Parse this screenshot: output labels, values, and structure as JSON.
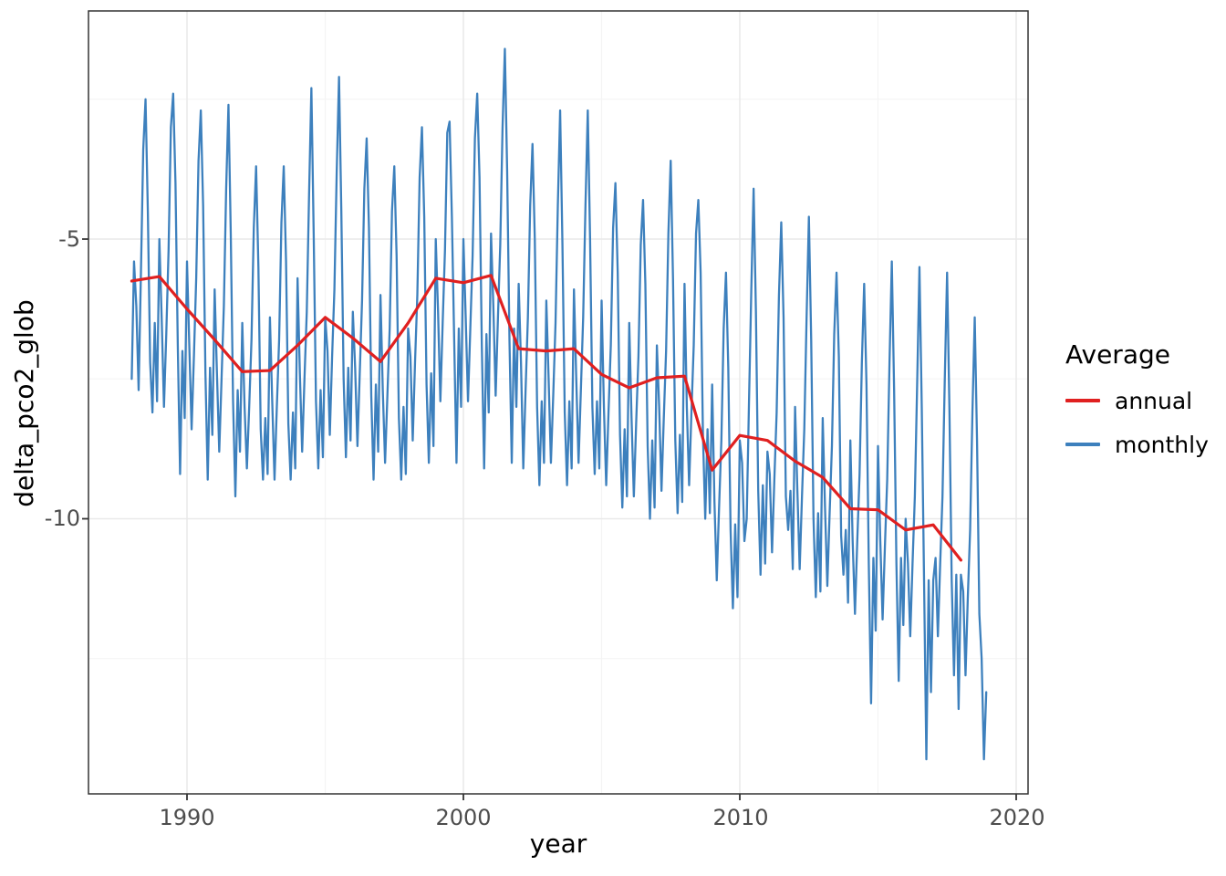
{
  "legend": {
    "title": "Average",
    "items": [
      {
        "label": "annual"
      },
      {
        "label": "monthly"
      }
    ]
  },
  "colors": {
    "annual": "#e02020",
    "monthly": "#3d80bd",
    "grid_major": "#e9e9e9",
    "grid_minor": "#f4f4f4",
    "panel_border": "#333333",
    "tick_mark": "#333333"
  },
  "chart_data": {
    "type": "line",
    "xlabel": "year",
    "ylabel": "delta_pco2_glob",
    "legend_title": "Average",
    "legend_position": "right",
    "grid": true,
    "xlim": [
      1986.4,
      2020.4
    ],
    "ylim": [
      -14.9,
      -0.9
    ],
    "x_ticks": [
      1990,
      2000,
      2010,
      2020
    ],
    "x_tick_labels": [
      "1990",
      "2000",
      "2010",
      "2020"
    ],
    "x_minor_ticks": [
      1995,
      2005,
      2015
    ],
    "y_ticks": [
      -5,
      -10
    ],
    "y_tick_labels": [
      "-5",
      "-10"
    ],
    "y_minor_ticks": [
      -2.5,
      -7.5,
      -12.5
    ],
    "series": [
      {
        "name": "annual",
        "style": "line",
        "x": [
          1988,
          1989,
          1990,
          1991,
          1992,
          1993,
          1994,
          1995,
          1996,
          1997,
          1998,
          1999,
          2000,
          2001,
          2002,
          2003,
          2004,
          2005,
          2006,
          2007,
          2008,
          2009,
          2010,
          2011,
          2012,
          2013,
          2014,
          2015,
          2016,
          2017,
          2018
        ],
        "values": [
          -5.75,
          -5.67,
          -6.25,
          -6.8,
          -7.37,
          -7.35,
          -6.9,
          -6.4,
          -6.77,
          -7.19,
          -6.5,
          -5.7,
          -5.78,
          -5.65,
          -6.96,
          -7.0,
          -6.96,
          -7.42,
          -7.66,
          -7.48,
          -7.45,
          -9.13,
          -8.51,
          -8.6,
          -8.97,
          -9.26,
          -9.82,
          -9.84,
          -10.2,
          -10.11,
          -10.74
        ]
      },
      {
        "name": "monthly",
        "style": "line",
        "months": [
          "Jan",
          "Feb",
          "Mar",
          "Apr",
          "May",
          "Jun",
          "Jul",
          "Aug",
          "Sep",
          "Oct",
          "Nov",
          "Dec"
        ],
        "values_by_year": {
          "1988": [
            -7.5,
            -5.4,
            -6.2,
            -7.7,
            -5.6,
            -3.4,
            -2.5,
            -4.5,
            -7.2,
            -8.1,
            -6.5,
            -7.9
          ],
          "1989": [
            -5.0,
            -6.4,
            -8.0,
            -6.7,
            -5.2,
            -3.0,
            -2.4,
            -4.0,
            -6.9,
            -9.2,
            -7.0,
            -8.2
          ],
          "1990": [
            -5.4,
            -6.9,
            -8.4,
            -7.1,
            -5.7,
            -3.6,
            -2.7,
            -4.4,
            -7.4,
            -9.3,
            -7.3,
            -8.5
          ],
          "1991": [
            -5.9,
            -7.4,
            -8.8,
            -7.5,
            -6.2,
            -4.1,
            -2.6,
            -4.9,
            -7.9,
            -9.6,
            -7.7,
            -8.8
          ],
          "1992": [
            -6.5,
            -8.0,
            -9.1,
            -8.0,
            -6.8,
            -4.8,
            -3.7,
            -5.5,
            -8.4,
            -9.3,
            -8.2,
            -9.2
          ],
          "1993": [
            -6.4,
            -7.9,
            -9.3,
            -8.0,
            -6.8,
            -4.7,
            -3.7,
            -5.4,
            -8.3,
            -9.3,
            -8.1,
            -9.1
          ],
          "1994": [
            -5.7,
            -7.4,
            -8.8,
            -7.5,
            -6.3,
            -4.2,
            -2.3,
            -4.9,
            -7.9,
            -9.1,
            -7.7,
            -8.9
          ],
          "1995": [
            -6.4,
            -7.0,
            -8.5,
            -7.1,
            -5.9,
            -3.8,
            -2.1,
            -4.5,
            -7.5,
            -8.9,
            -7.3,
            -8.6
          ],
          "1996": [
            -6.3,
            -7.3,
            -8.7,
            -7.4,
            -6.1,
            -4.1,
            -3.2,
            -4.8,
            -7.8,
            -9.3,
            -7.6,
            -8.8
          ],
          "1997": [
            -6.0,
            -7.7,
            -9.0,
            -7.8,
            -6.6,
            -4.5,
            -3.7,
            -5.3,
            -8.2,
            -9.3,
            -8.0,
            -9.2
          ],
          "1998": [
            -6.6,
            -7.1,
            -8.6,
            -7.2,
            -6.0,
            -3.9,
            -3.0,
            -4.6,
            -7.6,
            -9.0,
            -7.4,
            -8.7
          ],
          "1999": [
            -5.0,
            -6.3,
            -7.9,
            -6.5,
            -5.2,
            -3.1,
            -2.9,
            -4.6,
            -6.8,
            -9.0,
            -6.6,
            -8.0
          ],
          "2000": [
            -5.0,
            -6.4,
            -7.9,
            -6.6,
            -5.3,
            -3.2,
            -2.4,
            -3.9,
            -6.9,
            -9.1,
            -6.7,
            -8.1
          ],
          "2001": [
            -4.9,
            -6.2,
            -7.8,
            -6.4,
            -5.1,
            -3.0,
            -1.6,
            -3.8,
            -6.8,
            -9.0,
            -6.6,
            -8.0
          ],
          "2002": [
            -5.8,
            -7.2,
            -9.1,
            -7.7,
            -6.4,
            -4.4,
            -3.3,
            -5.0,
            -8.0,
            -9.4,
            -7.9,
            -9.0
          ],
          "2003": [
            -6.1,
            -7.5,
            -9.0,
            -7.8,
            -6.5,
            -4.4,
            -2.7,
            -5.1,
            -8.1,
            -9.4,
            -7.9,
            -9.1
          ],
          "2004": [
            -5.9,
            -7.5,
            -9.0,
            -7.7,
            -6.4,
            -4.4,
            -2.7,
            -5.0,
            -8.0,
            -9.2,
            -7.9,
            -9.1
          ],
          "2005": [
            -6.1,
            -8.0,
            -9.4,
            -8.1,
            -6.9,
            -4.8,
            -4.0,
            -5.6,
            -8.5,
            -9.8,
            -8.4,
            -9.6
          ],
          "2006": [
            -6.5,
            -8.2,
            -9.6,
            -8.3,
            -7.1,
            -5.1,
            -4.3,
            -5.8,
            -8.7,
            -10.0,
            -8.6,
            -9.8
          ],
          "2007": [
            -6.9,
            -8.0,
            -9.5,
            -8.2,
            -7.0,
            -4.9,
            -3.6,
            -5.7,
            -8.6,
            -9.9,
            -8.5,
            -9.7
          ],
          "2008": [
            -5.8,
            -8.0,
            -9.4,
            -8.1,
            -6.9,
            -4.9,
            -4.3,
            -5.6,
            -8.5,
            -10.0,
            -8.4,
            -9.9
          ],
          "2009": [
            -7.6,
            -9.7,
            -11.1,
            -9.8,
            -8.6,
            -6.6,
            -5.6,
            -7.3,
            -10.2,
            -11.6,
            -10.1,
            -11.4
          ],
          "2010": [
            -8.6,
            -9.0,
            -10.4,
            -10.0,
            -7.9,
            -5.9,
            -4.1,
            -6.3,
            -9.5,
            -11.0,
            -9.4,
            -10.8
          ],
          "2011": [
            -8.8,
            -9.2,
            -10.6,
            -9.3,
            -8.1,
            -6.0,
            -4.7,
            -6.4,
            -9.6,
            -10.2,
            -9.5,
            -10.9
          ],
          "2012": [
            -8.0,
            -9.5,
            -10.9,
            -9.6,
            -8.4,
            -6.4,
            -4.6,
            -6.8,
            -10.0,
            -11.4,
            -9.9,
            -11.3
          ],
          "2013": [
            -8.2,
            -9.8,
            -11.2,
            -9.9,
            -8.7,
            -6.7,
            -5.6,
            -7.1,
            -10.3,
            -11.0,
            -10.2,
            -11.5
          ],
          "2014": [
            -8.6,
            -10.4,
            -11.7,
            -10.4,
            -9.2,
            -7.2,
            -5.8,
            -7.6,
            -10.8,
            -13.3,
            -10.7,
            -12.0
          ],
          "2015": [
            -8.7,
            -10.4,
            -11.8,
            -10.5,
            -9.3,
            -7.2,
            -5.4,
            -7.7,
            -10.8,
            -12.9,
            -10.7,
            -11.9
          ],
          "2016": [
            -10.0,
            -10.8,
            -12.1,
            -10.8,
            -9.6,
            -7.6,
            -5.5,
            -8.0,
            -11.1,
            -14.3,
            -11.1,
            -13.1
          ],
          "2017": [
            -11.1,
            -10.7,
            -12.1,
            -10.8,
            -9.6,
            -7.5,
            -5.6,
            -8.0,
            -11.1,
            -12.8,
            -11.0,
            -13.4
          ],
          "2018": [
            -11.0,
            -11.3,
            -12.8,
            -11.4,
            -10.2,
            -8.1,
            -6.4,
            -8.6,
            -11.7,
            -12.5,
            -14.3,
            -13.1
          ]
        }
      }
    ]
  }
}
